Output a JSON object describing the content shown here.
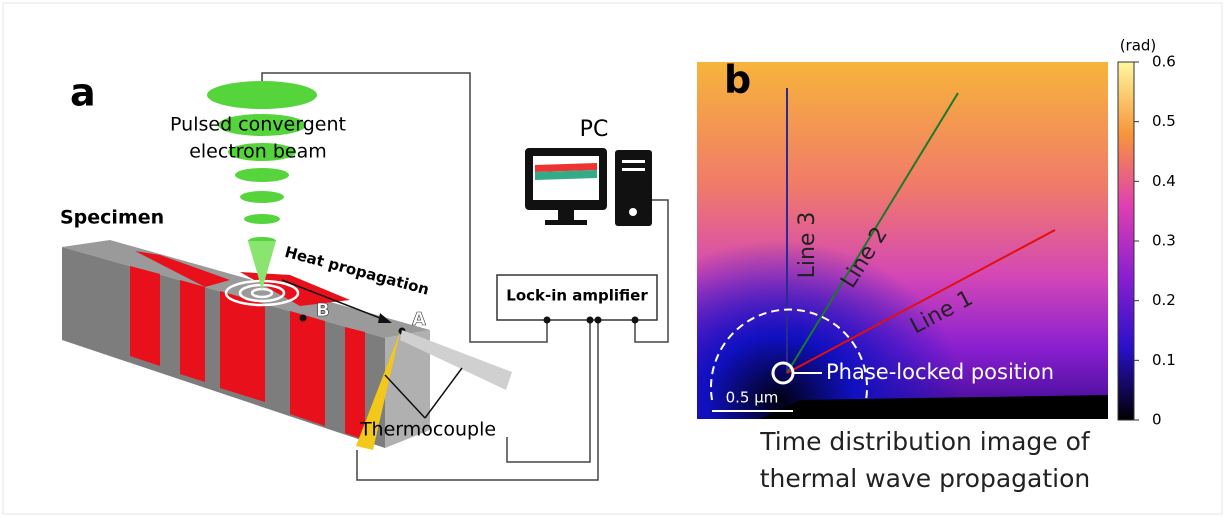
{
  "panel_a": {
    "letter": "a",
    "beam_label": [
      "Pulsed convergent",
      "electron beam"
    ],
    "specimen": "Specimen",
    "heat": "Heat propagation",
    "point_b": "B",
    "point_a": "A",
    "pc": "PC",
    "lockin": "Lock-in amplifier",
    "thermocouple": "Thermocouple"
  },
  "panel_b": {
    "letter": "b",
    "lines": [
      "Line 3",
      "Line 2",
      "Line 1"
    ],
    "position": "Phase-locked position",
    "scale": "0.5 μm",
    "caption": [
      "Time distribution image of",
      "thermal wave propagation"
    ],
    "colorbar": {
      "unit": "(rad)",
      "range": [
        0,
        0.6
      ],
      "ticks": [
        0,
        0.1,
        0.2,
        0.3,
        0.4,
        0.5,
        0.6
      ]
    }
  }
}
